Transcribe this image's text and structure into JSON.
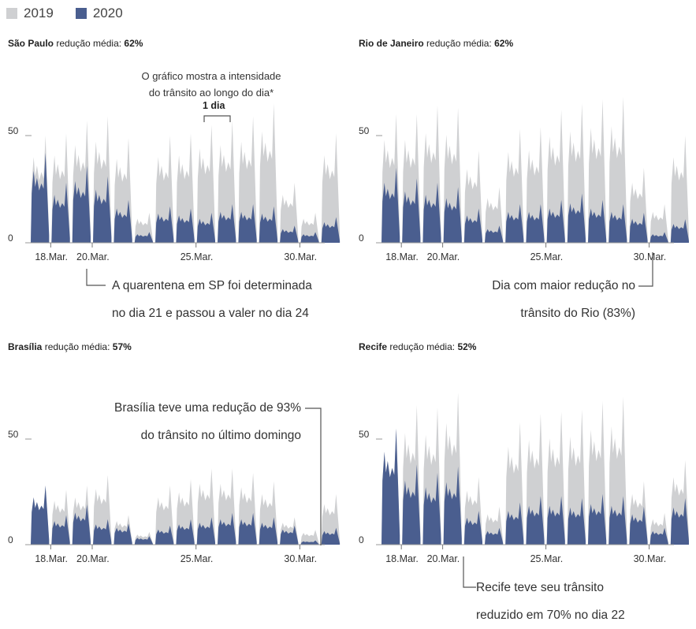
{
  "legend": {
    "items": [
      {
        "label": "2019",
        "color": "#cfd0d2"
      },
      {
        "label": "2020",
        "color": "#4a5e8f"
      }
    ]
  },
  "panel_label_text": "redução média:",
  "colors": {
    "y2019": "#cfd0d2",
    "y2020": "#4a5e8f",
    "axis": "#555555",
    "text": "#333333"
  },
  "chart_data": [
    {
      "type": "area",
      "city": "São Paulo",
      "avg_reduction": "62%",
      "ylim": [
        0,
        70
      ],
      "yticks": [
        {
          "value": 0,
          "label": "0"
        },
        {
          "value": 50,
          "label": "50"
        }
      ],
      "xticks": [
        {
          "day": 18,
          "label": "18.Mar."
        },
        {
          "day": 20,
          "label": "20.Mar."
        },
        {
          "day": 25,
          "label": "25.Mar."
        },
        {
          "day": 30,
          "label": "30.Mar."
        }
      ],
      "days": [
        17,
        18,
        19,
        20,
        21,
        22,
        23,
        24,
        25,
        26,
        27,
        28,
        29,
        30,
        31
      ],
      "series": [
        {
          "name": "2019",
          "values": [
            50,
            51,
            57,
            59,
            49,
            14,
            50,
            51,
            55,
            57,
            59,
            65,
            28,
            14,
            51
          ]
        },
        {
          "name": "2020",
          "values": [
            42,
            28,
            36,
            31,
            20,
            5,
            17,
            16,
            14,
            18,
            18,
            17,
            8,
            5,
            12
          ]
        }
      ]
    },
    {
      "type": "area",
      "city": "Rio de Janeiro",
      "avg_reduction": "62%",
      "ylim": [
        0,
        70
      ],
      "yticks": [
        {
          "value": 0,
          "label": "0"
        },
        {
          "value": 50,
          "label": "50"
        }
      ],
      "xticks": [
        {
          "day": 18,
          "label": "18.Mar."
        },
        {
          "day": 20,
          "label": "20.Mar."
        },
        {
          "day": 25,
          "label": "25.Mar."
        },
        {
          "day": 30,
          "label": "30.Mar."
        }
      ],
      "days": [
        17,
        18,
        19,
        20,
        21,
        22,
        23,
        24,
        25,
        26,
        27,
        28,
        29,
        30,
        31
      ],
      "series": [
        {
          "name": "2019",
          "values": [
            60,
            60,
            64,
            63,
            43,
            26,
            53,
            54,
            62,
            65,
            67,
            68,
            35,
            18,
            50
          ]
        },
        {
          "name": "2020",
          "values": [
            35,
            30,
            28,
            26,
            16,
            8,
            18,
            18,
            20,
            23,
            20,
            18,
            14,
            5,
            11
          ]
        }
      ]
    },
    {
      "type": "area",
      "city": "Brasília",
      "avg_reduction": "57%",
      "ylim": [
        0,
        70
      ],
      "yticks": [
        {
          "value": 0,
          "label": "0"
        },
        {
          "value": 50,
          "label": "50"
        }
      ],
      "xticks": [
        {
          "day": 18,
          "label": "18.Mar."
        },
        {
          "day": 20,
          "label": "20.Mar."
        },
        {
          "day": 25,
          "label": "25.Mar."
        },
        {
          "day": 30,
          "label": "30.Mar."
        }
      ],
      "days": [
        17,
        18,
        19,
        20,
        21,
        22,
        23,
        24,
        25,
        26,
        27,
        28,
        29,
        30,
        31
      ],
      "series": [
        {
          "name": "2019",
          "values": [
            28,
            26,
            28,
            33,
            14,
            6,
            28,
            31,
            36,
            36,
            34,
            30,
            13,
            7,
            24
          ]
        },
        {
          "name": "2020",
          "values": [
            28,
            14,
            19,
            12,
            10,
            4,
            9,
            12,
            13,
            15,
            15,
            13,
            9,
            2,
            8
          ]
        }
      ]
    },
    {
      "type": "area",
      "city": "Recife",
      "avg_reduction": "52%",
      "ylim": [
        0,
        70
      ],
      "yticks": [
        {
          "value": 0,
          "label": "0"
        },
        {
          "value": 50,
          "label": "50"
        }
      ],
      "xticks": [
        {
          "day": 18,
          "label": "18.Mar."
        },
        {
          "day": 20,
          "label": "20.Mar."
        },
        {
          "day": 25,
          "label": "25.Mar."
        },
        {
          "day": 30,
          "label": "30.Mar."
        }
      ],
      "days": [
        17,
        18,
        19,
        20,
        21,
        22,
        23,
        24,
        25,
        26,
        27,
        28,
        29,
        30,
        31
      ],
      "series": [
        {
          "name": "2019",
          "values": [
            55,
            66,
            65,
            72,
            32,
            18,
            58,
            62,
            63,
            64,
            68,
            70,
            30,
            15,
            40
          ]
        },
        {
          "name": "2020",
          "values": [
            55,
            38,
            34,
            37,
            16,
            8,
            20,
            23,
            23,
            22,
            24,
            23,
            18,
            8,
            22
          ]
        }
      ]
    }
  ],
  "annotations": {
    "sp_note_line1": "O gráfico mostra a intensidade",
    "sp_note_line2": "do trânsito ao longo do dia*",
    "sp_one_day": "1 dia",
    "sp_quarantine_line1": "A quarentena em SP foi determinada",
    "sp_quarantine_line2": "no dia 21 e passou a valer no dia 24",
    "rio_line1": "Dia com maior redução no",
    "rio_line2": "trânsito do Rio (83%)",
    "bsb_line1": "Brasília teve uma redução de 93%",
    "bsb_line2": "do trânsito no último domingo",
    "recife_line1": "Recife teve seu trânsito",
    "recife_line2": "reduzido em 70% no dia 22"
  }
}
